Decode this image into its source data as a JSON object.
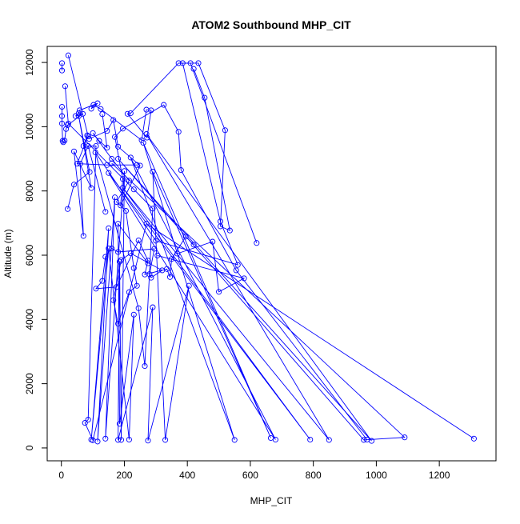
{
  "chart_data": {
    "type": "line",
    "title": "ATOM2 Southbound MHP_CIT",
    "xlabel": "MHP_CIT",
    "ylabel": "Altitude (m)",
    "xlim": [
      -45,
      1380
    ],
    "ylim": [
      -400,
      12500
    ],
    "x_ticks": [
      0,
      200,
      400,
      600,
      800,
      1000,
      1200
    ],
    "y_ticks": [
      0,
      2000,
      4000,
      6000,
      8000,
      10000,
      12000
    ],
    "markers": "open-circle",
    "grid": false,
    "colors": {
      "series": "#0000ff",
      "axis": "#000000"
    },
    "series": [
      {
        "points": [
          [
            22,
            12220
          ],
          [
            85,
            9700
          ],
          [
            50,
            8850
          ],
          [
            145,
            8810
          ],
          [
            240,
            8810
          ]
        ]
      },
      {
        "points": [
          [
            2,
            11980
          ],
          [
            2,
            11750
          ]
        ]
      },
      {
        "points": [
          [
            12,
            11260
          ],
          [
            22,
            10100
          ],
          [
            230,
            8050
          ],
          [
            290,
            7450
          ],
          [
            265,
            2550
          ],
          [
            245,
            4350
          ],
          [
            108,
            9200
          ],
          [
            300,
            6450
          ],
          [
            560,
            5700
          ],
          [
            505,
            7050
          ],
          [
            385,
            11980
          ],
          [
            410,
            11980
          ],
          [
            620,
            6380
          ]
        ]
      },
      {
        "points": [
          [
            2,
            10620
          ],
          [
            2,
            10330
          ],
          [
            2,
            10100
          ],
          [
            4,
            9560
          ],
          [
            6,
            9520
          ],
          [
            10,
            9570
          ],
          [
            15,
            9930
          ],
          [
            20,
            10050
          ],
          [
            68,
            10400
          ],
          [
            45,
            10330
          ],
          [
            55,
            10420
          ],
          [
            58,
            10510
          ],
          [
            115,
            10730
          ],
          [
            95,
            10560
          ],
          [
            102,
            10680
          ],
          [
            125,
            10550
          ],
          [
            255,
            9580
          ],
          [
            270,
            10530
          ],
          [
            285,
            10510
          ],
          [
            272,
            9660
          ],
          [
            210,
            10400
          ],
          [
            220,
            10420
          ],
          [
            372,
            11980
          ],
          [
            435,
            11980
          ],
          [
            520,
            9890
          ],
          [
            505,
            6900
          ],
          [
            535,
            6770
          ],
          [
            455,
            10900
          ],
          [
            420,
            11800
          ]
        ]
      },
      {
        "points": [
          [
            20,
            7440
          ],
          [
            40,
            8200
          ],
          [
            90,
            8590
          ],
          [
            55,
            10330
          ],
          [
            95,
            8090
          ],
          [
            40,
            9230
          ],
          [
            70,
            6600
          ],
          [
            60,
            8850
          ],
          [
            85,
            9400
          ],
          [
            140,
            7350
          ]
        ]
      },
      {
        "points": [
          [
            88,
            9620
          ],
          [
            145,
            9870
          ],
          [
            165,
            10210
          ],
          [
            180,
            9380
          ],
          [
            250,
            8790
          ],
          [
            188,
            7550
          ],
          [
            195,
            8370
          ],
          [
            170,
            9680
          ],
          [
            195,
            9940
          ],
          [
            325,
            10680
          ],
          [
            372,
            9840
          ],
          [
            380,
            8650
          ],
          [
            555,
            5530
          ],
          [
            970,
            260
          ]
        ]
      },
      {
        "points": [
          [
            130,
            10390
          ],
          [
            145,
            9350
          ],
          [
            120,
            9560
          ],
          [
            100,
            9800
          ],
          [
            160,
            9000
          ],
          [
            215,
            8320
          ],
          [
            175,
            7660
          ],
          [
            205,
            7380
          ],
          [
            230,
            5600
          ],
          [
            240,
            5050
          ],
          [
            215,
            4850
          ],
          [
            180,
            3870
          ],
          [
            165,
            4600
          ],
          [
            190,
            5850
          ],
          [
            220,
            6060
          ],
          [
            320,
            5530
          ],
          [
            285,
            5300
          ],
          [
            280,
            5410
          ],
          [
            295,
            6200
          ],
          [
            180,
            6100
          ],
          [
            160,
            6210
          ],
          [
            140,
            5950
          ],
          [
            130,
            5200
          ],
          [
            110,
            4960
          ],
          [
            175,
            5010
          ],
          [
            245,
            6460
          ],
          [
            275,
            5830
          ],
          [
            265,
            5400
          ],
          [
            335,
            5570
          ],
          [
            345,
            5320
          ],
          [
            350,
            5880
          ],
          [
            395,
            6580
          ],
          [
            420,
            6330
          ]
        ]
      },
      {
        "points": [
          [
            305,
            5990
          ],
          [
            580,
            5280
          ],
          [
            500,
            4860
          ],
          [
            480,
            6420
          ],
          [
            368,
            6050
          ]
        ]
      },
      {
        "points": [
          [
            82,
            9730
          ],
          [
            70,
            9400
          ],
          [
            110,
            9400
          ],
          [
            85,
            880
          ],
          [
            75,
            780
          ],
          [
            100,
            240
          ],
          [
            270,
            6980
          ],
          [
            1310,
            290
          ]
        ]
      },
      {
        "points": [
          [
            160,
            8860
          ],
          [
            1090,
            330
          ],
          [
            960,
            250
          ],
          [
            180,
            9000
          ],
          [
            985,
            220
          ],
          [
            270,
            9770
          ],
          [
            850,
            250
          ],
          [
            195,
            8100
          ],
          [
            790,
            260
          ],
          [
            150,
            8560
          ],
          [
            680,
            260
          ],
          [
            220,
            9040
          ],
          [
            550,
            250
          ],
          [
            260,
            9500
          ],
          [
            665,
            310
          ],
          [
            290,
            8600
          ],
          [
            330,
            250
          ],
          [
            405,
            5050
          ],
          [
            275,
            230
          ],
          [
            290,
            4380
          ],
          [
            180,
            250
          ],
          [
            185,
            5800
          ],
          [
            190,
            250
          ],
          [
            200,
            8620
          ],
          [
            140,
            290
          ],
          [
            170,
            7800
          ],
          [
            115,
            200
          ],
          [
            150,
            6840
          ],
          [
            95,
            260
          ],
          [
            150,
            6210
          ],
          [
            215,
            260
          ],
          [
            230,
            4150
          ],
          [
            185,
            750
          ],
          [
            180,
            6980
          ],
          [
            275,
            5750
          ]
        ]
      }
    ]
  }
}
